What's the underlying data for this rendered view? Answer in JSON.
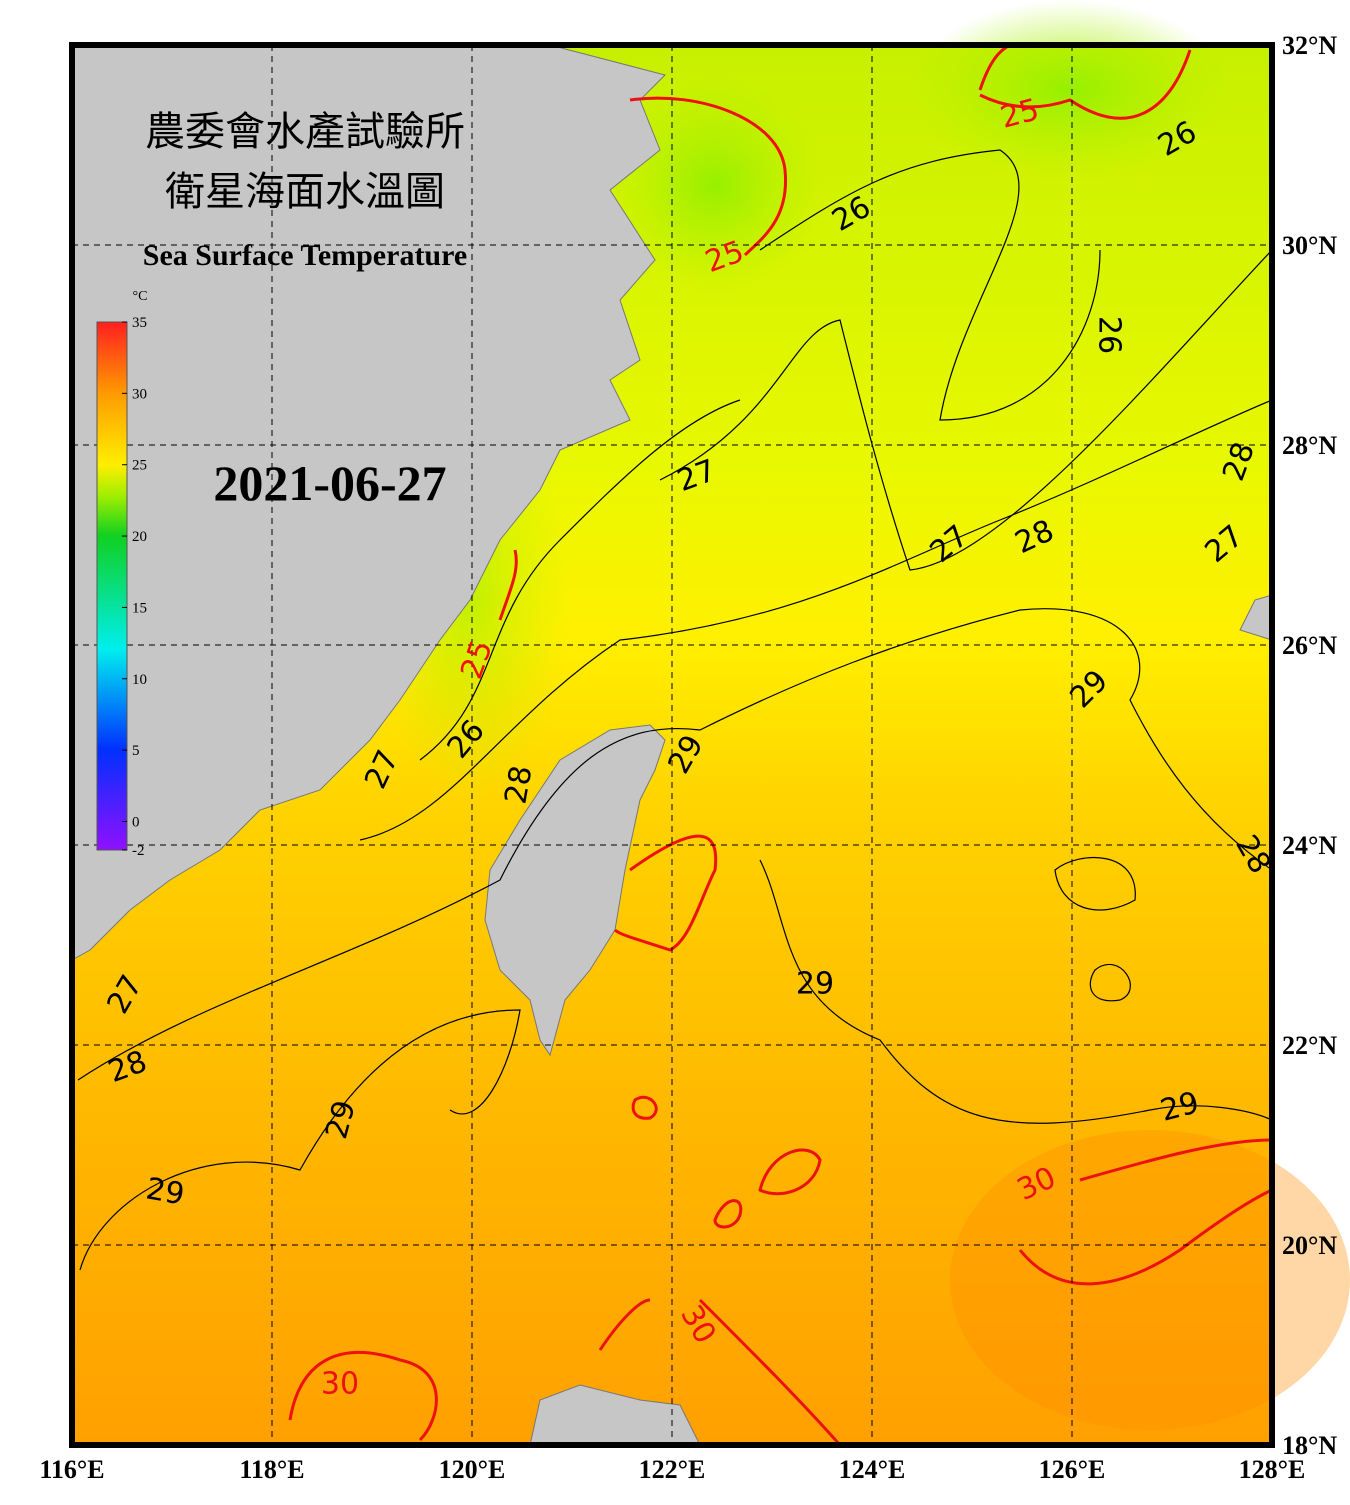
{
  "header": {
    "title_zh_1": "農委會水產試驗所",
    "title_zh_2": "衛星海面水溫圖",
    "title_en": "Sea Surface Temperature",
    "date": "2021-06-27"
  },
  "map": {
    "lon_labels": [
      {
        "value": 116,
        "label": "116°E"
      },
      {
        "value": 118,
        "label": "118°E"
      },
      {
        "value": 120,
        "label": "120°E"
      },
      {
        "value": 122,
        "label": "122°E"
      },
      {
        "value": 124,
        "label": "124°E"
      },
      {
        "value": 126,
        "label": "126°E"
      },
      {
        "value": 128,
        "label": "128°E"
      }
    ],
    "lat_labels": [
      {
        "value": 32,
        "label": "32°N"
      },
      {
        "value": 30,
        "label": "30°N"
      },
      {
        "value": 28,
        "label": "28°N"
      },
      {
        "value": 26,
        "label": "26°N"
      },
      {
        "value": 24,
        "label": "24°N"
      },
      {
        "value": 22,
        "label": "22°N"
      },
      {
        "value": 20,
        "label": "20°N"
      },
      {
        "value": 18,
        "label": "18°N"
      }
    ],
    "colorbar": {
      "unit": "°C",
      "ticks": [
        35,
        30,
        25,
        20,
        15,
        10,
        5,
        0,
        -2
      ]
    },
    "contour_labels": [
      25,
      26,
      26,
      25,
      26,
      27,
      28,
      27,
      28,
      27,
      25,
      29,
      26,
      27,
      29,
      28,
      28,
      29,
      27,
      28,
      29,
      29,
      30,
      29,
      30,
      30
    ]
  }
}
